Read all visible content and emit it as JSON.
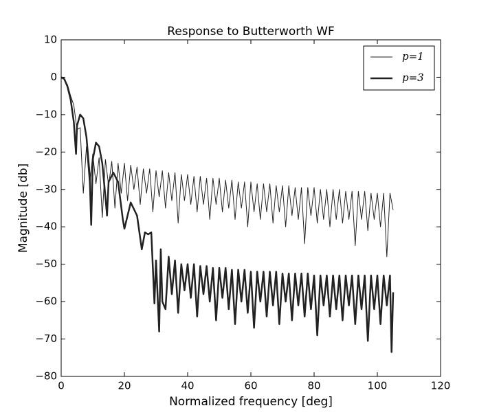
{
  "chart_data": {
    "type": "line",
    "title": "Response to Butterworth WF",
    "x_label": "Normalized frequency [deg]",
    "y_label": "Magnitude [db]",
    "xlim": [
      0,
      120
    ],
    "ylim": [
      -80,
      10
    ],
    "xticks": [
      0,
      20,
      40,
      60,
      80,
      100,
      120
    ],
    "yticks": [
      10,
      0,
      {
        "value": -10,
        "label": "−10"
      },
      {
        "value": -20,
        "label": "−20"
      },
      {
        "value": -30,
        "label": "−30"
      },
      {
        "value": -40,
        "label": "−40"
      },
      {
        "value": -50,
        "label": "−50"
      },
      {
        "value": -60,
        "label": "−60"
      },
      {
        "value": -70,
        "label": "−70"
      },
      {
        "value": -80,
        "label": "−80"
      }
    ],
    "grid": false,
    "legend": "upper right",
    "series": [
      {
        "name": "p=1",
        "color": "#222222",
        "x": [
          0,
          1,
          2,
          3,
          4,
          5,
          6,
          7,
          8,
          9,
          10,
          11,
          12,
          13,
          14,
          15,
          16,
          17,
          18,
          19,
          20,
          21,
          22,
          23,
          24,
          25,
          26,
          27,
          28,
          29,
          30,
          31,
          32,
          33,
          34,
          35,
          36,
          37,
          38,
          39,
          40,
          41,
          42,
          43,
          44,
          45,
          46,
          47,
          48,
          49,
          50,
          51,
          52,
          53,
          54,
          55,
          56,
          57,
          58,
          59,
          60,
          61,
          62,
          63,
          64,
          65,
          66,
          67,
          68,
          69,
          70,
          71,
          72,
          73,
          74,
          75,
          76,
          77,
          78,
          79,
          80,
          81,
          82,
          83,
          84,
          85,
          86,
          87,
          88,
          89,
          90,
          91,
          92,
          93,
          94,
          95,
          96,
          97,
          98,
          99,
          100,
          101,
          102,
          103,
          104,
          105
        ],
        "values": [
          0,
          -0.5,
          -2,
          -5,
          -7.5,
          -14,
          -13.5,
          -31,
          -18.5,
          -29,
          -20.5,
          -28.5,
          -21.5,
          -37.5,
          -22,
          -29,
          -22.5,
          -35,
          -23,
          -31,
          -23,
          -33,
          -23.5,
          -30,
          -24,
          -34,
          -24.5,
          -31,
          -24.5,
          -36,
          -25,
          -32,
          -25,
          -35,
          -25.5,
          -33,
          -25.5,
          -39,
          -26,
          -33,
          -26,
          -34,
          -26.5,
          -36,
          -26.5,
          -34,
          -27,
          -38,
          -27,
          -34,
          -27,
          -36,
          -27.5,
          -35,
          -27.5,
          -38,
          -28,
          -35,
          -28,
          -40,
          -28,
          -36,
          -28.5,
          -38,
          -28.5,
          -36,
          -28.5,
          -39,
          -29,
          -36,
          -29,
          -40,
          -29,
          -37,
          -29.5,
          -38,
          -29.5,
          -44.5,
          -29.5,
          -37,
          -29.5,
          -39,
          -30,
          -38,
          -30,
          -40,
          -30,
          -38,
          -30,
          -39,
          -30.5,
          -38,
          -30.5,
          -45,
          -30.5,
          -38,
          -30.5,
          -41,
          -31,
          -38,
          -31,
          -40,
          -31,
          -48,
          -31,
          -35.5
        ]
      },
      {
        "name": "p=3",
        "color": "#222222",
        "x": [
          0,
          1,
          2,
          3,
          4,
          4.7,
          5,
          6,
          7,
          8,
          9,
          9.5,
          10,
          11,
          12,
          13,
          14,
          14.5,
          15,
          16.5,
          18,
          19.5,
          20,
          22,
          24,
          25.5,
          26.5,
          27.5,
          28.5,
          29.5,
          30,
          31,
          31.5,
          32,
          33,
          34,
          35,
          36,
          37,
          38,
          39,
          40,
          41,
          42,
          43,
          44,
          45,
          46,
          47,
          48,
          49,
          50,
          51,
          52,
          53,
          54,
          55,
          56,
          57,
          58,
          59,
          60,
          61,
          62,
          63,
          64,
          65,
          66,
          67,
          68,
          69,
          70,
          71,
          72,
          73,
          74,
          75,
          76,
          77,
          78,
          79,
          80,
          81,
          82,
          83,
          84,
          85,
          86,
          87,
          88,
          89,
          90,
          91,
          92,
          93,
          94,
          95,
          96,
          97,
          98,
          99,
          100,
          101,
          102,
          103,
          104,
          104.5,
          105
        ],
        "values": [
          0,
          -0.5,
          -2.5,
          -6,
          -12,
          -20.5,
          -13,
          -10,
          -11,
          -16,
          -26,
          -39.5,
          -22,
          -17.5,
          -18.5,
          -23,
          -32,
          -37,
          -28,
          -25.5,
          -28,
          -38,
          -40.5,
          -33.5,
          -37,
          -46,
          -41.5,
          -42,
          -41.5,
          -60.5,
          -49,
          -68,
          -46,
          -60,
          -62,
          -48,
          -58,
          -49,
          -63,
          -50,
          -57,
          -50,
          -59,
          -50,
          -64,
          -50.5,
          -58,
          -50.5,
          -60,
          -51,
          -65,
          -51,
          -59,
          -51,
          -62,
          -51.5,
          -66,
          -51.5,
          -60,
          -51.5,
          -63,
          -52,
          -67,
          -52,
          -60,
          -52,
          -64,
          -52,
          -61,
          -52,
          -66,
          -52.5,
          -60,
          -52.5,
          -65,
          -52.5,
          -61,
          -52.5,
          -64,
          -52.5,
          -62,
          -53,
          -69,
          -53,
          -61,
          -53,
          -64,
          -53,
          -62,
          -53,
          -65,
          -53,
          -61,
          -53,
          -66,
          -53,
          -62,
          -53,
          -70.5,
          -53,
          -62,
          -53,
          -66,
          -53,
          -61,
          -53,
          -73.5,
          -57.5
        ]
      }
    ]
  }
}
